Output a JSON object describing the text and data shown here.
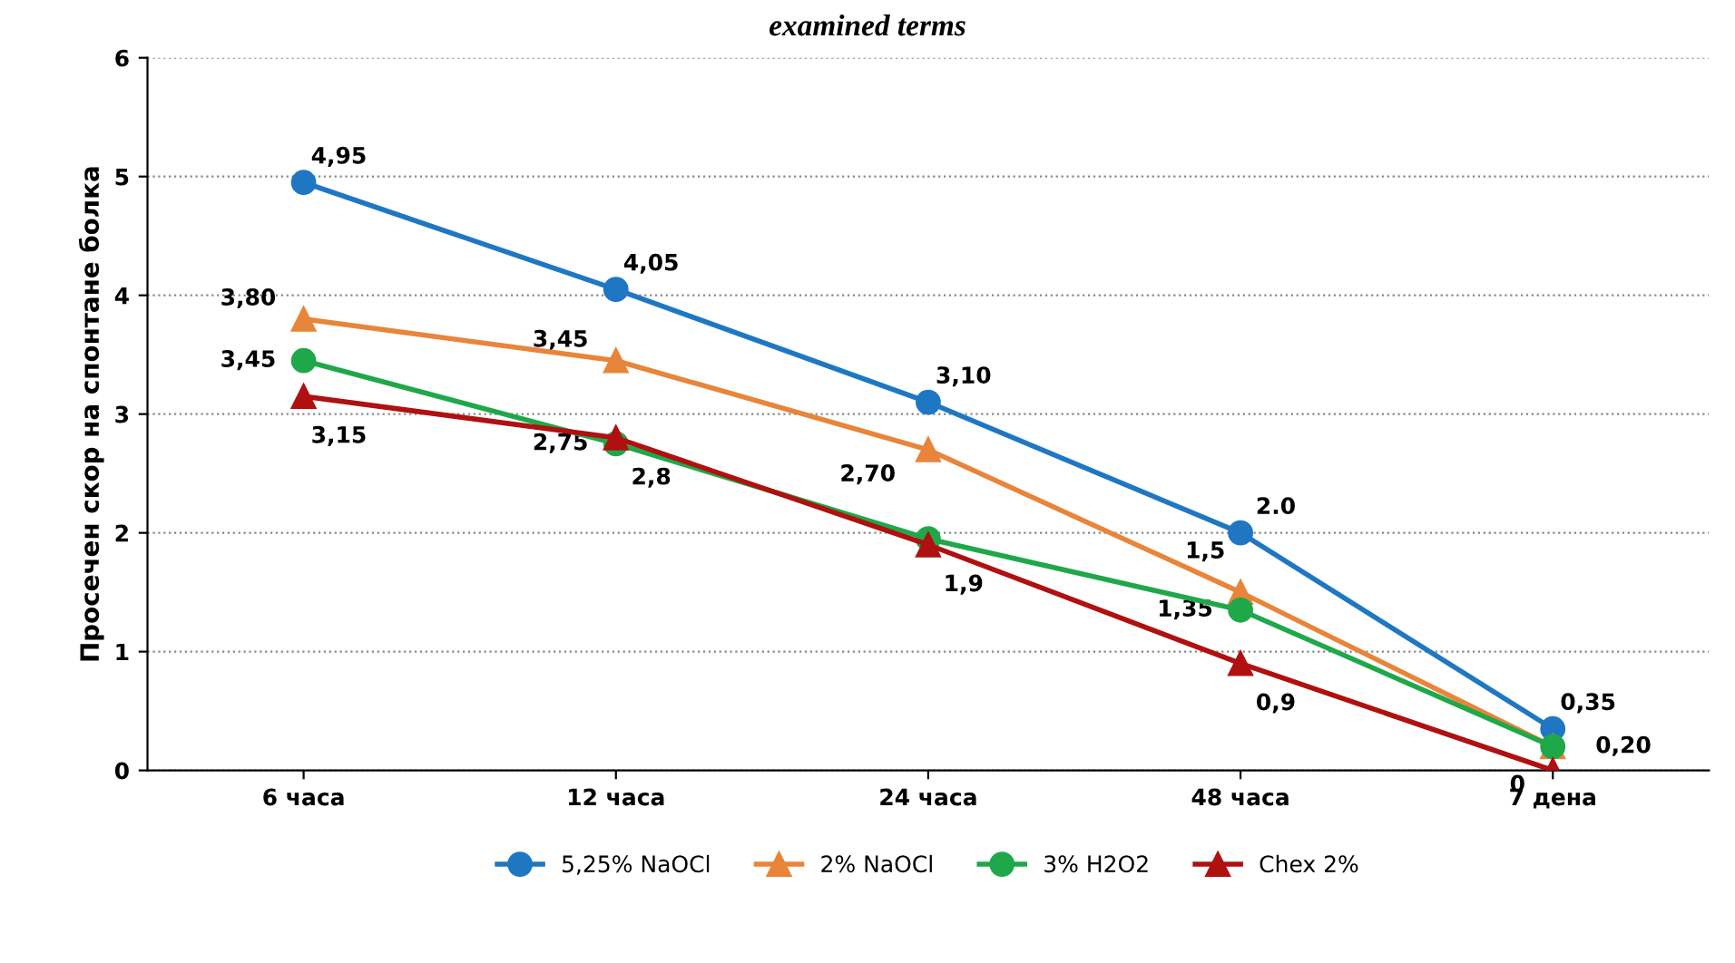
{
  "chart_data": {
    "type": "line",
    "title": "examined terms",
    "ylabel": "Просечен скор на спонтане болка",
    "categories": [
      "6 часа",
      "12 часа",
      "24 часа",
      "48 часа",
      "7 дена"
    ],
    "series": [
      {
        "name": "5,25% NaOCl",
        "color": "#1f77c4",
        "marker": "circle",
        "values": [
          4.95,
          4.05,
          3.1,
          2.0,
          0.35
        ],
        "value_labels": [
          "4,95",
          "4,05",
          "3,10",
          "2.0",
          "0,35"
        ]
      },
      {
        "name": "2% NaOCl",
        "color": "#e8853a",
        "marker": "triangle",
        "values": [
          3.8,
          3.45,
          2.7,
          1.5,
          0.2
        ],
        "value_labels": [
          "3,80",
          "3,45",
          "2,70",
          "1,5",
          null
        ]
      },
      {
        "name": "3% H2O2",
        "color": "#1fa84a",
        "marker": "circle",
        "values": [
          3.45,
          2.75,
          1.95,
          1.35,
          0.2
        ],
        "value_labels": [
          "3,45",
          "2,75",
          null,
          "1,35",
          "0,20"
        ]
      },
      {
        "name": "Chex 2%",
        "color": "#b01010",
        "marker": "triangle",
        "values": [
          3.15,
          2.8,
          1.9,
          0.9,
          0
        ],
        "value_labels": [
          "3,15",
          "2,8",
          "1,9",
          "0,9",
          "0"
        ]
      }
    ],
    "ylim": [
      0,
      6
    ],
    "yticks": [
      0,
      1,
      2,
      3,
      4,
      5,
      6
    ],
    "grid": "y",
    "legend": "bottom"
  }
}
